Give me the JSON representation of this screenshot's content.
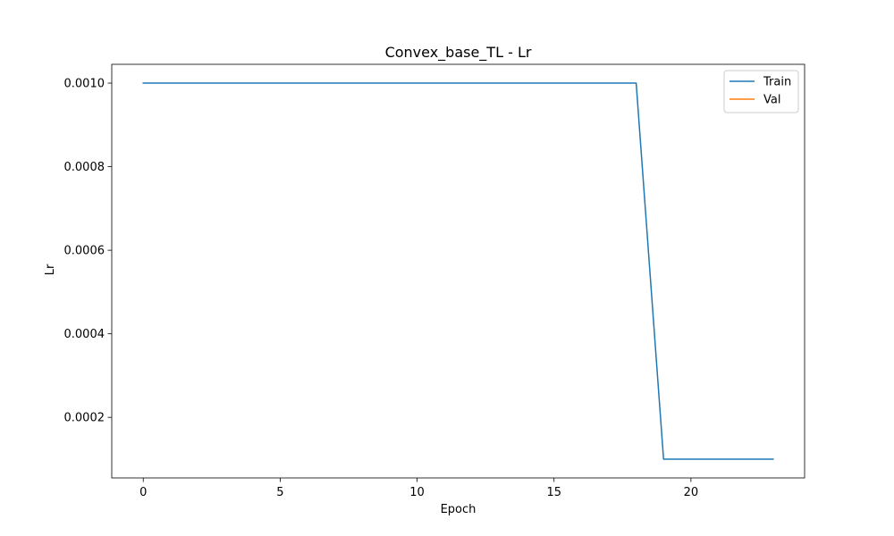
{
  "chart_data": {
    "type": "line",
    "title": "Convex_base_TL - Lr",
    "xlabel": "Epoch",
    "ylabel": "Lr",
    "xlim": [
      -1.15,
      24.15
    ],
    "ylim": [
      5.5e-05,
      0.001045
    ],
    "xticks": [
      0,
      5,
      10,
      15,
      20
    ],
    "xtick_labels": [
      "0",
      "5",
      "10",
      "15",
      "20"
    ],
    "yticks": [
      0.0002,
      0.0004,
      0.0006,
      0.0008,
      0.001
    ],
    "ytick_labels": [
      "0.0002",
      "0.0004",
      "0.0006",
      "0.0008",
      "0.0010"
    ],
    "grid": false,
    "legend_position": "top-right",
    "series": [
      {
        "name": "Train",
        "color": "#1f77b4",
        "x": [
          0,
          1,
          2,
          3,
          4,
          5,
          6,
          7,
          8,
          9,
          10,
          11,
          12,
          13,
          14,
          15,
          16,
          17,
          18,
          19,
          20,
          21,
          22,
          23
        ],
        "values": [
          0.001,
          0.001,
          0.001,
          0.001,
          0.001,
          0.001,
          0.001,
          0.001,
          0.001,
          0.001,
          0.001,
          0.001,
          0.001,
          0.001,
          0.001,
          0.001,
          0.001,
          0.001,
          0.001,
          0.0001,
          0.0001,
          0.0001,
          0.0001,
          0.0001
        ]
      },
      {
        "name": "Val",
        "color": "#ff7f0e",
        "x": [],
        "values": []
      }
    ]
  }
}
